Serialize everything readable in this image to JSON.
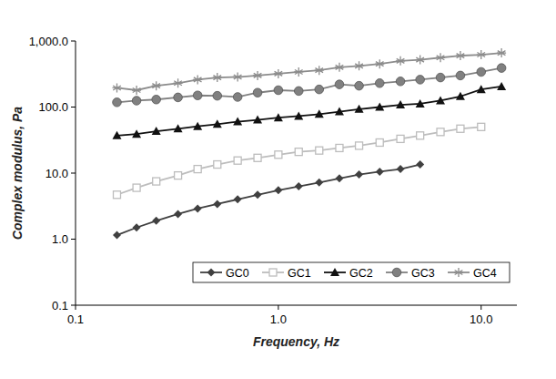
{
  "chart_data": {
    "type": "line",
    "x_label": "Frequency, Hz",
    "y_label": "Complex modulus, Pa",
    "log": true,
    "grid": false,
    "legend": "lower right",
    "x": [
      0.16,
      0.2,
      0.25,
      0.32,
      0.4,
      0.5,
      0.63,
      0.79,
      1.0,
      1.26,
      1.59,
      2.0,
      2.5,
      3.16,
      4.0,
      5.0,
      6.3,
      7.9,
      10,
      12.6
    ],
    "xlim": [
      0.1,
      15
    ],
    "xticks": [
      0.1,
      {
        "value": 1,
        "label": "1.0"
      },
      {
        "value": 10,
        "label": "10.0"
      }
    ],
    "ylim": [
      0.1,
      1000
    ],
    "yticks": [
      0.1,
      {
        "value": 1,
        "label": "1.0"
      },
      {
        "value": 10,
        "label": "10.0"
      },
      {
        "value": 100,
        "label": "100.0"
      },
      {
        "value": 1000,
        "label": "1,000.0"
      }
    ],
    "series": [
      {
        "name": "GC0",
        "color": "#404040",
        "marker": "diamond",
        "values": [
          1.15,
          1.5,
          1.9,
          2.4,
          2.9,
          3.4,
          4.0,
          4.7,
          5.5,
          6.3,
          7.2,
          8.3,
          9.5,
          10.5,
          11.5,
          13.5,
          null,
          null,
          null,
          null
        ]
      },
      {
        "name": "GC1",
        "color": "#bdbdbd",
        "marker": "square",
        "values": [
          4.7,
          6.0,
          7.5,
          9.2,
          11.5,
          13.5,
          15.5,
          17,
          19,
          21,
          22,
          24,
          26,
          29,
          33,
          37,
          42,
          47,
          50,
          null
        ]
      },
      {
        "name": "GC2",
        "color": "#111111",
        "marker": "triangle",
        "values": [
          37,
          39,
          43,
          47,
          51,
          55,
          60,
          64,
          69,
          73,
          78,
          85,
          93,
          100,
          108,
          112,
          125,
          145,
          185,
          205
        ]
      },
      {
        "name": "GC3",
        "color": "#808080",
        "marker": "circle",
        "values": [
          118,
          125,
          130,
          140,
          150,
          148,
          142,
          165,
          180,
          175,
          185,
          220,
          210,
          230,
          245,
          260,
          280,
          300,
          340,
          390
        ]
      },
      {
        "name": "GC4",
        "color": "#8c8c8c",
        "marker": "star",
        "values": [
          195,
          180,
          210,
          230,
          260,
          280,
          285,
          300,
          320,
          340,
          360,
          400,
          420,
          450,
          500,
          520,
          560,
          600,
          620,
          660
        ]
      }
    ]
  }
}
